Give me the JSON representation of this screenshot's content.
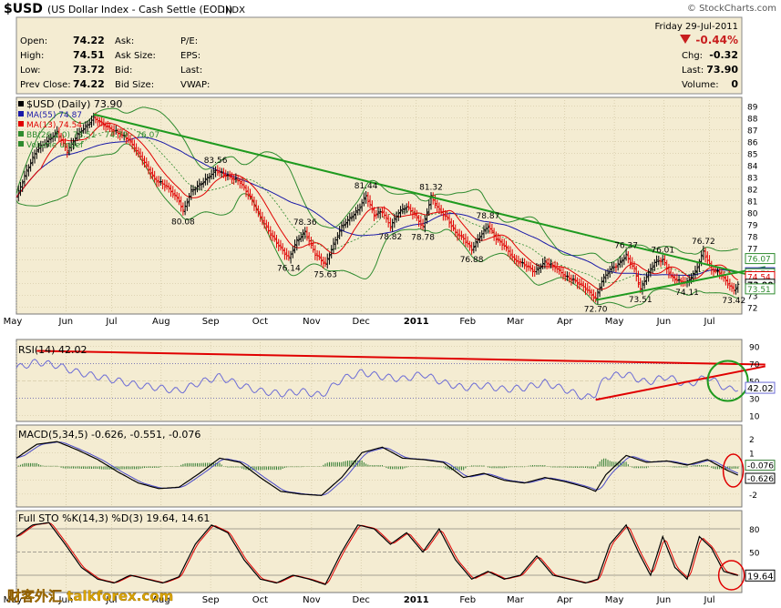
{
  "header": {
    "symbol": "$USD",
    "name": "(US Dollar Index - Cash Settle (EOD))",
    "exchange": "INDX",
    "copyright": "© StockCharts.com",
    "date_line": "Friday   29-Jul-2011",
    "change_pct": "-0.44%",
    "quote": [
      [
        "Open:",
        "74.22",
        "Ask:",
        "",
        "P/E:",
        ""
      ],
      [
        "High:",
        "74.51",
        "Ask Size:",
        "",
        "EPS:",
        ""
      ],
      [
        "Low:",
        "73.72",
        "Bid:",
        "",
        "Last:",
        ""
      ],
      [
        "Prev Close:",
        "74.22",
        "Bid Size:",
        "",
        "VWAP:",
        ""
      ]
    ],
    "right": [
      [
        "Chg:",
        "-0.32"
      ],
      [
        "Last:",
        "73.90"
      ],
      [
        "Volume:",
        "0"
      ]
    ]
  },
  "colors": {
    "panel_bg": "#f4ecd2",
    "price": "#000000",
    "up": "#000000",
    "down": "#e00000",
    "ma55": "#1a1aa8",
    "ma13": "#e00000",
    "bb": "#2e8b2e",
    "trend": "#1f9a1f",
    "rsi": "#6b6bd6",
    "macd": "#000000",
    "signal": "#4a4ac8",
    "hist": "#2e7a2e",
    "stoK": "#000000",
    "stoD": "#e00000",
    "circle_green": "#1f9a1f",
    "circle_red": "#e00000"
  },
  "chart_data": [
    {
      "type": "line",
      "title": "$USD (Daily) 73.90",
      "legend": [
        "MA(55) 74.87",
        "MA(13) 74.54",
        "BB(26,2.0) 73.51 - 74.79 - 76.07",
        "Volume undef"
      ],
      "legend_placement": "top-left",
      "ylim": [
        71.5,
        89.5
      ],
      "yticks": [
        72,
        73,
        74,
        75,
        76,
        77,
        78,
        79,
        80,
        81,
        82,
        83,
        84,
        85,
        86,
        87,
        88,
        89
      ],
      "x_labels": [
        "May",
        "Jun",
        "Jul",
        "Aug",
        "Sep",
        "Oct",
        "Nov",
        "Dec",
        "2011",
        "Feb",
        "Mar",
        "Apr",
        "May",
        "Jun",
        "Jul"
      ],
      "price_approx": [
        [
          0,
          81.3
        ],
        [
          5,
          83.5
        ],
        [
          10,
          85.3
        ],
        [
          15,
          86.0
        ],
        [
          20,
          86.8
        ],
        [
          25,
          85.2
        ],
        [
          30,
          86.6
        ],
        [
          35,
          87.4
        ],
        [
          38,
          88.0
        ],
        [
          45,
          87.2
        ],
        [
          55,
          86.2
        ],
        [
          62,
          84.5
        ],
        [
          68,
          82.8
        ],
        [
          74,
          82.2
        ],
        [
          80,
          81.0
        ],
        [
          82,
          80.08
        ],
        [
          86,
          81.8
        ],
        [
          92,
          82.6
        ],
        [
          98,
          83.56
        ],
        [
          105,
          83.0
        ],
        [
          110,
          82.6
        ],
        [
          115,
          81.3
        ],
        [
          120,
          79.6
        ],
        [
          125,
          78.2
        ],
        [
          130,
          77.0
        ],
        [
          134,
          76.14
        ],
        [
          138,
          77.6
        ],
        [
          142,
          78.36
        ],
        [
          147,
          76.5
        ],
        [
          152,
          75.63
        ],
        [
          156,
          77.3
        ],
        [
          160,
          78.8
        ],
        [
          164,
          79.5
        ],
        [
          168,
          80.2
        ],
        [
          172,
          81.44
        ],
        [
          176,
          79.8
        ],
        [
          180,
          80.1
        ],
        [
          184,
          78.82
        ],
        [
          188,
          80.0
        ],
        [
          192,
          80.5
        ],
        [
          196,
          79.8
        ],
        [
          200,
          78.78
        ],
        [
          204,
          81.32
        ],
        [
          208,
          80.2
        ],
        [
          212,
          79.5
        ],
        [
          216,
          78.3
        ],
        [
          220,
          77.8
        ],
        [
          224,
          76.88
        ],
        [
          228,
          78.0
        ],
        [
          232,
          78.87
        ],
        [
          236,
          77.8
        ],
        [
          240,
          77.2
        ],
        [
          245,
          76.0
        ],
        [
          250,
          75.6
        ],
        [
          255,
          75.0
        ],
        [
          260,
          75.8
        ],
        [
          265,
          75.4
        ],
        [
          270,
          74.6
        ],
        [
          275,
          74.2
        ],
        [
          280,
          73.6
        ],
        [
          285,
          72.7
        ],
        [
          288,
          74.2
        ],
        [
          292,
          75.2
        ],
        [
          296,
          75.6
        ],
        [
          300,
          76.37
        ],
        [
          304,
          75.2
        ],
        [
          307,
          73.51
        ],
        [
          310,
          74.6
        ],
        [
          314,
          75.8
        ],
        [
          318,
          76.01
        ],
        [
          322,
          74.6
        ],
        [
          326,
          74.2
        ],
        [
          330,
          74.11
        ],
        [
          334,
          75.0
        ],
        [
          338,
          76.72
        ],
        [
          342,
          75.2
        ],
        [
          346,
          74.9
        ],
        [
          350,
          74.0
        ],
        [
          353,
          73.42
        ],
        [
          355,
          73.9
        ]
      ],
      "annotations": [
        "83.56",
        "80.08",
        "78.36",
        "76.14",
        "75.63",
        "81.44",
        "78.82",
        "78.78",
        "81.32",
        "78.87",
        "76.88",
        "72.70",
        "76.37",
        "73.51",
        "76.01",
        "74.11",
        "76.72",
        "73.42"
      ],
      "last_value_labels": [
        "76.07",
        "74.87",
        "74.79",
        "74.54",
        "73.90",
        "73.51"
      ]
    },
    {
      "type": "line",
      "title": "RSI(14) 42.02",
      "ylim": [
        5,
        95
      ],
      "yticks": [
        10,
        30,
        50,
        70,
        90
      ],
      "last": "42.02",
      "rsi_approx": [
        [
          0,
          65
        ],
        [
          10,
          72
        ],
        [
          20,
          68
        ],
        [
          30,
          60
        ],
        [
          40,
          55
        ],
        [
          50,
          50
        ],
        [
          60,
          45
        ],
        [
          70,
          42
        ],
        [
          80,
          38
        ],
        [
          90,
          48
        ],
        [
          100,
          55
        ],
        [
          110,
          45
        ],
        [
          120,
          38
        ],
        [
          130,
          35
        ],
        [
          140,
          38
        ],
        [
          150,
          33
        ],
        [
          160,
          52
        ],
        [
          170,
          60
        ],
        [
          180,
          55
        ],
        [
          190,
          52
        ],
        [
          200,
          58
        ],
        [
          210,
          48
        ],
        [
          220,
          42
        ],
        [
          230,
          45
        ],
        [
          240,
          40
        ],
        [
          250,
          42
        ],
        [
          260,
          48
        ],
        [
          270,
          40
        ],
        [
          280,
          30
        ],
        [
          285,
          35
        ],
        [
          290,
          55
        ],
        [
          300,
          58
        ],
        [
          310,
          48
        ],
        [
          320,
          55
        ],
        [
          330,
          45
        ],
        [
          340,
          55
        ],
        [
          350,
          40
        ],
        [
          355,
          42
        ]
      ]
    },
    {
      "type": "line",
      "title": "MACD(5,34,5) -0.626, -0.551, -0.076",
      "ylim": [
        -2.8,
        2.8
      ],
      "yticks": [
        -2,
        -1,
        0,
        1,
        2
      ],
      "last_labels": [
        "-0.076",
        "-0.626"
      ],
      "macd_approx": [
        [
          0,
          0.6
        ],
        [
          10,
          1.6
        ],
        [
          20,
          1.8
        ],
        [
          30,
          1.2
        ],
        [
          40,
          0.5
        ],
        [
          50,
          -0.4
        ],
        [
          60,
          -1.2
        ],
        [
          70,
          -1.6
        ],
        [
          80,
          -1.5
        ],
        [
          90,
          -0.5
        ],
        [
          100,
          0.6
        ],
        [
          110,
          0.3
        ],
        [
          120,
          -0.8
        ],
        [
          130,
          -1.8
        ],
        [
          140,
          -2.0
        ],
        [
          150,
          -2.1
        ],
        [
          160,
          -0.8
        ],
        [
          170,
          1.0
        ],
        [
          180,
          1.4
        ],
        [
          190,
          0.6
        ],
        [
          200,
          0.5
        ],
        [
          210,
          0.3
        ],
        [
          220,
          -0.8
        ],
        [
          230,
          -0.5
        ],
        [
          240,
          -1.0
        ],
        [
          250,
          -1.2
        ],
        [
          260,
          -0.8
        ],
        [
          270,
          -1.1
        ],
        [
          280,
          -1.5
        ],
        [
          285,
          -1.8
        ],
        [
          290,
          -0.6
        ],
        [
          300,
          0.8
        ],
        [
          310,
          0.3
        ],
        [
          320,
          0.4
        ],
        [
          330,
          0.1
        ],
        [
          340,
          0.5
        ],
        [
          350,
          -0.3
        ],
        [
          355,
          -0.626
        ]
      ]
    },
    {
      "type": "line",
      "title": "Full STO %K(14,3) %D(3) 19.64, 14.61",
      "ylim": [
        0,
        100
      ],
      "yticks": [
        20,
        50,
        80
      ],
      "last": "19.64",
      "stoK_approx": [
        [
          0,
          70
        ],
        [
          8,
          85
        ],
        [
          16,
          88
        ],
        [
          24,
          60
        ],
        [
          32,
          30
        ],
        [
          40,
          15
        ],
        [
          48,
          10
        ],
        [
          56,
          20
        ],
        [
          64,
          15
        ],
        [
          72,
          10
        ],
        [
          80,
          18
        ],
        [
          88,
          60
        ],
        [
          96,
          85
        ],
        [
          104,
          75
        ],
        [
          112,
          40
        ],
        [
          120,
          15
        ],
        [
          128,
          10
        ],
        [
          136,
          20
        ],
        [
          144,
          15
        ],
        [
          152,
          8
        ],
        [
          160,
          50
        ],
        [
          168,
          85
        ],
        [
          176,
          80
        ],
        [
          184,
          60
        ],
        [
          192,
          75
        ],
        [
          200,
          50
        ],
        [
          208,
          80
        ],
        [
          216,
          40
        ],
        [
          224,
          15
        ],
        [
          232,
          25
        ],
        [
          240,
          15
        ],
        [
          248,
          20
        ],
        [
          256,
          45
        ],
        [
          264,
          20
        ],
        [
          272,
          15
        ],
        [
          280,
          10
        ],
        [
          286,
          15
        ],
        [
          292,
          60
        ],
        [
          300,
          85
        ],
        [
          306,
          50
        ],
        [
          312,
          20
        ],
        [
          318,
          70
        ],
        [
          324,
          30
        ],
        [
          330,
          15
        ],
        [
          336,
          70
        ],
        [
          342,
          55
        ],
        [
          348,
          25
        ],
        [
          355,
          19.64
        ]
      ]
    }
  ],
  "watermark": "财客外汇 talkforex.com"
}
